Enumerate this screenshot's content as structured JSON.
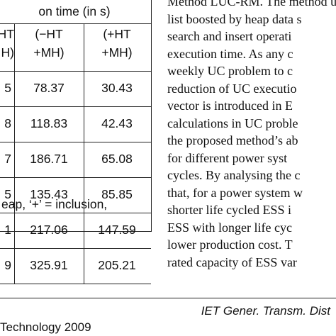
{
  "table": {
    "header_group": "on time (in s)",
    "col_headers": [
      {
        "line1": "HT",
        "line2": "H)"
      },
      {
        "line1": "(−HT",
        "line2": "+MH)"
      },
      {
        "line1": "(+HT",
        "line2": "+MH)"
      }
    ],
    "rows": [
      [
        "5",
        "78.37",
        "30.43"
      ],
      [
        "8",
        "118.83",
        "42.43"
      ],
      [
        "7",
        "186.71",
        "65.08"
      ],
      [
        "5",
        "135.43",
        "85.85"
      ],
      [
        "1",
        "217.06",
        "147.59"
      ],
      [
        "9",
        "325.91",
        "205.21"
      ]
    ],
    "footnote": "eap, ‘+’ = inclusion,"
  },
  "body_text": {
    "lines": [
      "Method LUC-RM. The method uses",
      "list boosted by heap data s",
      "search and insert operati",
      "execution time. As any c",
      "weekly UC problem to c",
      "reduction of UC executio",
      "vector is introduced in E",
      "calculations in UC proble",
      "the proposed method’s ab",
      "for different power syst",
      "cycles. By analysing the c",
      "that, for a power system w",
      "shorter life cycled ESS i",
      "ESS with longer life cyc",
      "lower production cost. T",
      "rated capacity of ESS var"
    ]
  },
  "footer": {
    "journal": "IET Gener. Transm. Dist",
    "publisher": "Technology 2009"
  }
}
